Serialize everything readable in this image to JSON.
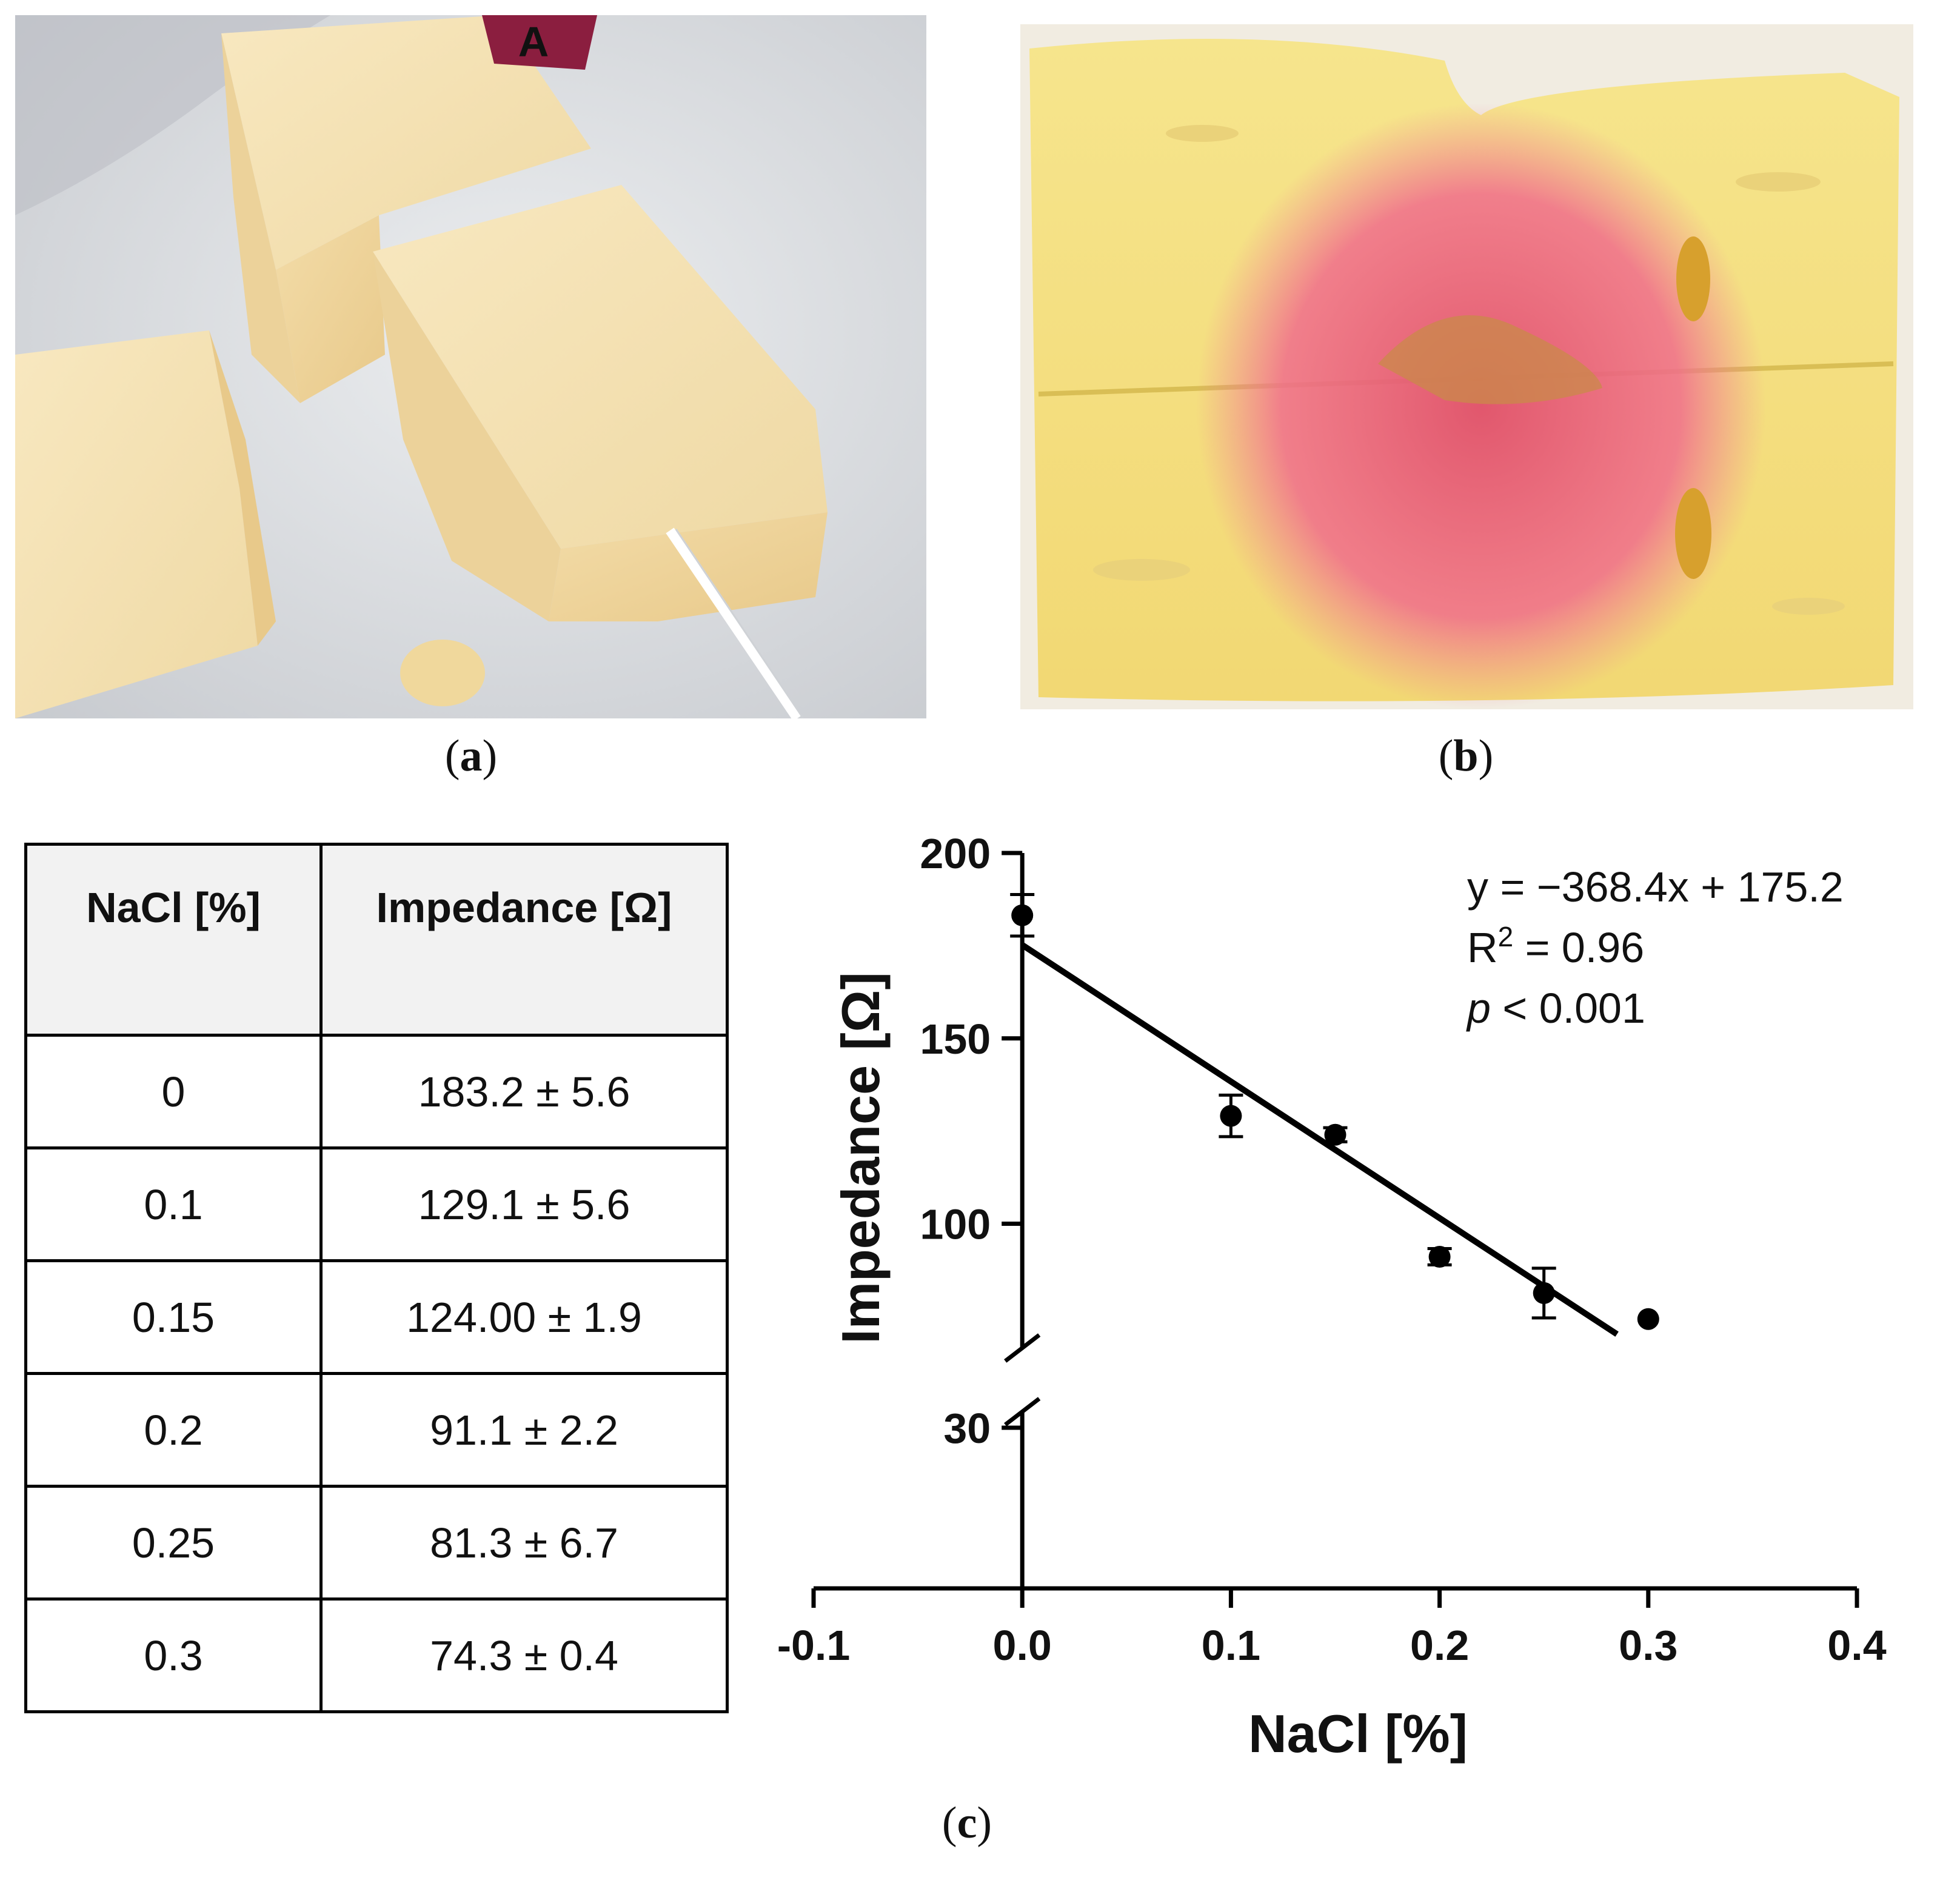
{
  "panels": {
    "a": {
      "label_letter": "a"
    },
    "b": {
      "label_letter": "b"
    },
    "c": {
      "label_letter": "c"
    }
  },
  "photo_a": {
    "tag_text": "A"
  },
  "table": {
    "headers": [
      "NaCl [%]",
      "Impedance [Ω]"
    ],
    "rows": [
      [
        "0",
        "183.2 ± 5.6"
      ],
      [
        "0.1",
        "129.1 ± 5.6"
      ],
      [
        "0.15",
        "124.00 ± 1.9"
      ],
      [
        "0.2",
        "91.1 ± 2.2"
      ],
      [
        "0.25",
        "81.3 ± 6.7"
      ],
      [
        "0.3",
        "74.3 ± 0.4"
      ]
    ]
  },
  "chart_data": {
    "type": "scatter",
    "title": "",
    "xlabel": "NaCl [%]",
    "ylabel": "Impedance [Ω]",
    "xlim": [
      -0.1,
      0.4
    ],
    "x_ticks": [
      -0.1,
      0.0,
      0.1,
      0.2,
      0.3,
      0.4
    ],
    "x_tick_labels": [
      "-0.1",
      "0.0",
      "0.1",
      "0.2",
      "0.3",
      "0.4"
    ],
    "ylim": [
      0,
      200
    ],
    "y_axis_break": [
      30,
      70
    ],
    "y_ticks": [
      30,
      100,
      150,
      200
    ],
    "y_tick_labels": [
      "30",
      "100",
      "150",
      "200"
    ],
    "points": [
      {
        "x": 0,
        "y": 183.2,
        "err": 5.6
      },
      {
        "x": 0.1,
        "y": 129.1,
        "err": 5.6
      },
      {
        "x": 0.15,
        "y": 124.0,
        "err": 1.9
      },
      {
        "x": 0.2,
        "y": 91.1,
        "err": 2.2
      },
      {
        "x": 0.25,
        "y": 81.3,
        "err": 6.7
      },
      {
        "x": 0.3,
        "y": 74.3,
        "err": 0.4
      }
    ],
    "fit": {
      "slope": -368.4,
      "intercept": 175.2,
      "x_range": [
        0,
        0.285
      ]
    },
    "annotation": {
      "equation": "y = −368.4x + 175.2",
      "r2_prefix": "R",
      "r2_sup": "2",
      "r2_rest": " = 0.96",
      "p_italic": "p",
      "p_rest": " < 0.001"
    },
    "grid": false
  }
}
